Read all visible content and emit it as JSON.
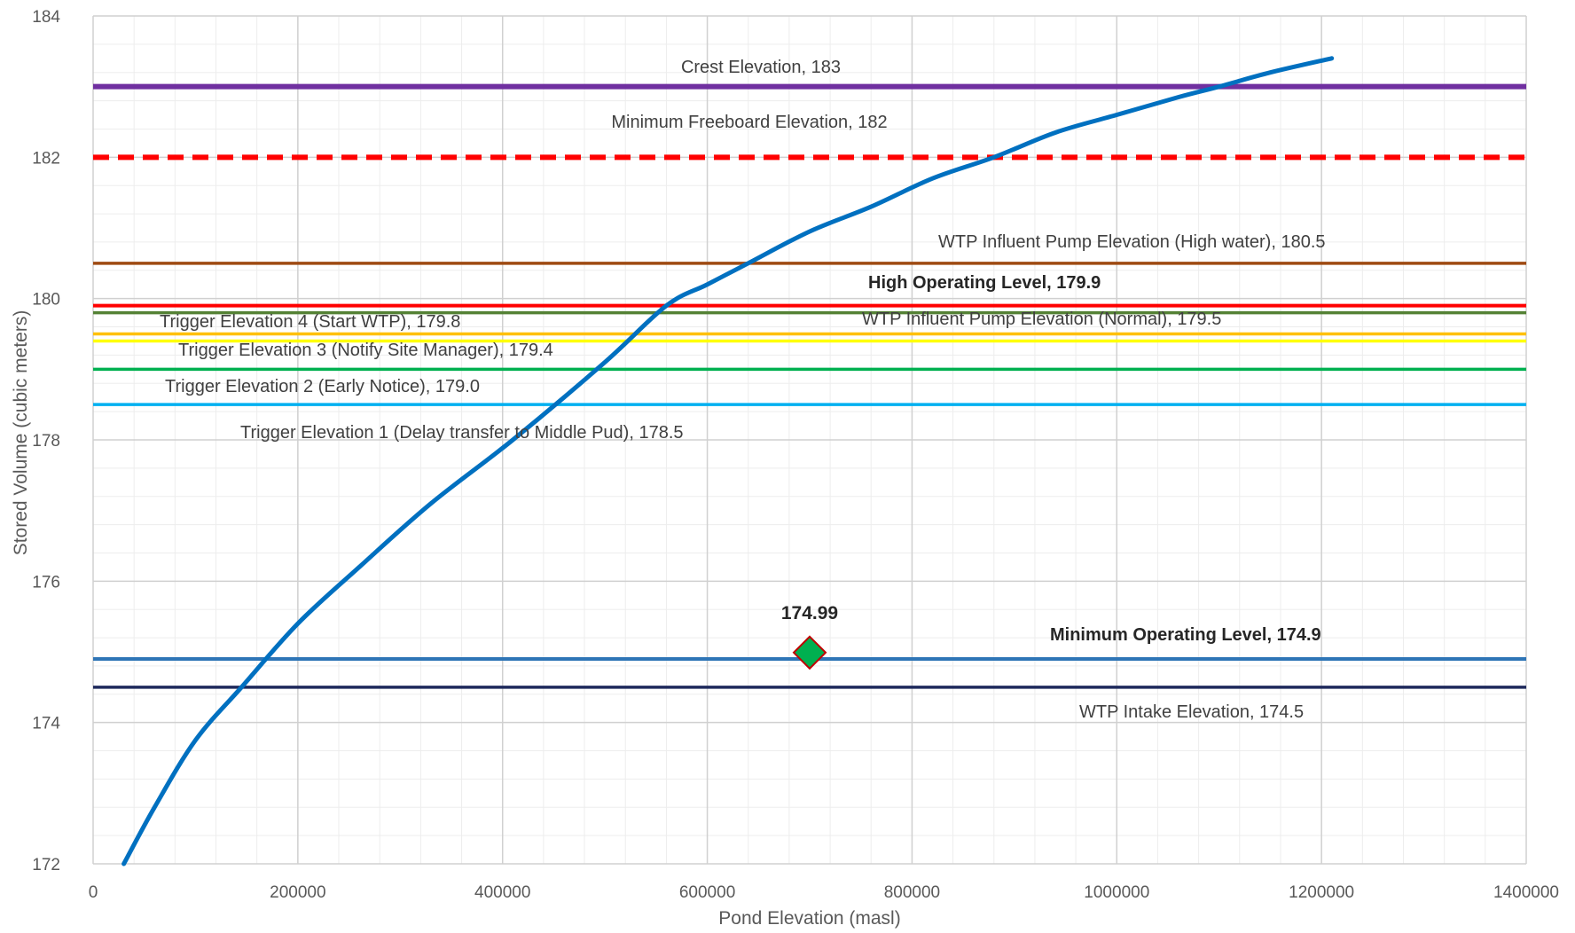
{
  "chart_data": {
    "type": "line",
    "title": "",
    "xlabel": "Pond Elevation (masl)",
    "ylabel": "Stored Volume (cubic meters)",
    "xlim": [
      0,
      1400000
    ],
    "ylim": [
      172,
      184
    ],
    "x_ticks": [
      "0",
      "200000",
      "400000",
      "600000",
      "800000",
      "1000000",
      "1200000",
      "1400000"
    ],
    "y_ticks": [
      "172",
      "174",
      "176",
      "178",
      "180",
      "182",
      "184"
    ],
    "grid": true,
    "legend": "none",
    "series": [
      {
        "color": "#0070C0",
        "x": [
          30000,
          60000,
          100000,
          145000,
          200000,
          260000,
          330000,
          410000,
          500000,
          560000,
          600000,
          640000,
          700000,
          760000,
          820000,
          880000,
          940000,
          1000000,
          1060000,
          1100000,
          1150000,
          1210000
        ],
        "y": [
          172.0,
          172.8,
          173.75,
          174.5,
          175.4,
          176.2,
          177.1,
          178.0,
          179.1,
          179.9,
          180.2,
          180.5,
          180.95,
          181.3,
          181.7,
          182.0,
          182.35,
          182.6,
          182.85,
          183.0,
          183.2,
          183.4
        ]
      }
    ],
    "reference_lines": [
      {
        "y": 183,
        "label": "Crest Elevation, 183",
        "color": "#7030A0",
        "bold": false
      },
      {
        "y": 182,
        "label": "Minimum Freeboard Elevation, 182",
        "color": "#FF0000",
        "bold": false,
        "dashed": true
      },
      {
        "y": 180.5,
        "label": "WTP Influent Pump Elevation (High water), 180.5",
        "color": "#9E4A12",
        "bold": false
      },
      {
        "y": 179.9,
        "label": "High Operating Level, 179.9",
        "color": "#FF0000",
        "bold": true
      },
      {
        "y": 179.8,
        "label": "Trigger Elevation 4 (Start WTP), 179.8",
        "color": "#548235",
        "bold": false
      },
      {
        "y": 179.5,
        "label": "WTP Influent Pump Elevation (Normal), 179.5",
        "color": "#FFC000",
        "bold": false
      },
      {
        "y": 179.4,
        "label": "Trigger Elevation 3 (Notify Site Manager), 179.4",
        "color": "#FFFF00",
        "bold": false
      },
      {
        "y": 179.0,
        "label": "Trigger Elevation 2 (Early Notice), 179.0",
        "color": "#00B050",
        "bold": false
      },
      {
        "y": 178.5,
        "label": "Trigger Elevation 1 (Delay transfer to Middle Pud), 178.5",
        "color": "#00B0F0",
        "bold": false
      },
      {
        "y": 174.9,
        "label": "Minimum Operating Level, 174.9",
        "color": "#2E75B6",
        "bold": true
      },
      {
        "y": 174.5,
        "label": "WTP Intake Elevation, 174.5",
        "color": "#1F2A5C",
        "bold": false
      }
    ],
    "marker": {
      "x": 700000,
      "y": 174.99,
      "label": "174.99",
      "color": "#00B050",
      "edge": "#C00000"
    }
  }
}
